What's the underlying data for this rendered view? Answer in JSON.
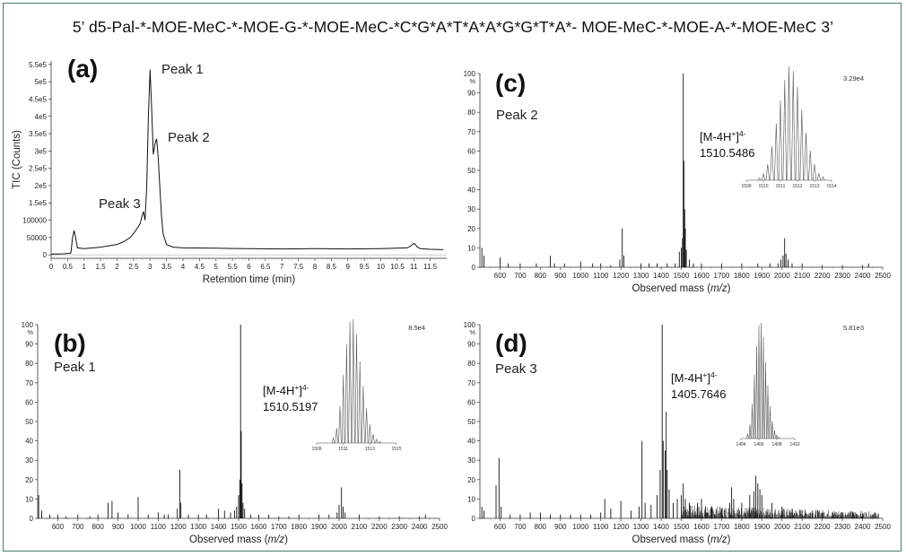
{
  "figure": {
    "title": "5’ d5-Pal-*-MOE-MeC-*-MOE-G-*-MOE-MeC-*C*G*A*T*A*A*G*G*T*A*- MOE-MeC-*-MOE-A-*-MOE-MeC 3’",
    "frame_color": "#4a7d6e"
  },
  "chart_data": [
    {
      "id": "a",
      "type": "line",
      "panel_label": "(a)",
      "xlabel": "Retention time (min)",
      "ylabel": "TIC (Counts)",
      "xlim": [
        0,
        12
      ],
      "ylim": [
        -10000,
        560000
      ],
      "xticks": [
        0,
        0.5,
        1,
        1.5,
        2,
        2.5,
        3,
        3.5,
        4,
        4.5,
        5,
        5.5,
        6,
        6.5,
        7,
        7.5,
        8,
        8.5,
        9,
        9.5,
        10,
        10.5,
        11,
        11.5
      ],
      "xtick_labels": [
        "0",
        "0.5",
        "1",
        "1.5",
        "2",
        "2.5",
        "3",
        "3.5",
        "4",
        "4.5",
        "5",
        "5.5",
        "6",
        "6.5",
        "7",
        "7.5",
        "8",
        "8.5",
        "9",
        "9.5",
        "10",
        "10.5",
        "11",
        "11.5"
      ],
      "yticks": [
        0,
        50000,
        100000,
        150000,
        200000,
        250000,
        300000,
        350000,
        400000,
        450000,
        500000,
        550000
      ],
      "ytick_labels": [
        "0",
        "50000",
        "100000",
        "1.5e5",
        "2e5",
        "2.5e5",
        "3e5",
        "3.5e5",
        "4e5",
        "4.5e5",
        "5e5",
        "5.5e5"
      ],
      "series": [
        {
          "x": [
            0.0,
            0.4,
            0.6,
            0.65,
            0.7,
            0.75,
            0.8,
            1.0,
            1.5,
            2.0,
            2.2,
            2.4,
            2.5,
            2.6,
            2.7,
            2.75,
            2.8,
            2.85,
            2.9,
            2.95,
            3.0,
            3.05,
            3.1,
            3.15,
            3.2,
            3.25,
            3.3,
            3.35,
            3.4,
            3.5,
            3.7,
            4.0,
            5.0,
            6.0,
            7.0,
            8.0,
            9.0,
            10.0,
            10.8,
            10.9,
            11.0,
            11.05,
            11.1,
            11.2,
            11.5,
            11.9
          ],
          "y": [
            2000,
            3000,
            5000,
            50000,
            70000,
            45000,
            20000,
            18000,
            22000,
            30000,
            38000,
            50000,
            62000,
            75000,
            90000,
            110000,
            125000,
            100000,
            200000,
            400000,
            535000,
            420000,
            290000,
            320000,
            335000,
            280000,
            190000,
            110000,
            60000,
            30000,
            22000,
            20000,
            19000,
            18000,
            17000,
            18000,
            17000,
            18000,
            20000,
            25000,
            33000,
            30000,
            23000,
            18000,
            16000,
            15000
          ]
        }
      ],
      "annotations": [
        {
          "text": "Peak 1",
          "x": 3.0,
          "y": 535000
        },
        {
          "text": "Peak 2",
          "x": 3.2,
          "y": 335000
        },
        {
          "text": "Peak 3",
          "x": 2.85,
          "y": 125000
        }
      ]
    },
    {
      "id": "c",
      "type": "bar",
      "panel_label": "(c)",
      "peak_label": "Peak 2",
      "ion_label": "[M-4H",
      "ion_sup1": "+",
      "ion_close": "]",
      "ion_sup2": "4-",
      "ion_mass": "1510.5486",
      "scale_label": "3.29e4",
      "pct_label": "%",
      "xlabel_main": "Observed mass (",
      "xlabel_italic": "m/z",
      "xlabel_end": ")",
      "xlim": [
        500,
        2500
      ],
      "ylim": [
        0,
        100
      ],
      "xticks": [
        600,
        700,
        800,
        900,
        1000,
        1100,
        1200,
        1300,
        1400,
        1500,
        1600,
        1700,
        1800,
        1900,
        2000,
        2100,
        2200,
        2300,
        2400,
        2500
      ],
      "yticks": [
        0,
        10,
        20,
        30,
        40,
        50,
        60,
        70,
        80,
        90,
        100
      ],
      "peaks": [
        [
          510,
          10
        ],
        [
          520,
          6
        ],
        [
          600,
          5
        ],
        [
          640,
          2
        ],
        [
          700,
          2
        ],
        [
          780,
          2
        ],
        [
          850,
          6
        ],
        [
          870,
          2
        ],
        [
          920,
          2
        ],
        [
          1000,
          3
        ],
        [
          1060,
          2
        ],
        [
          1100,
          2
        ],
        [
          1150,
          1
        ],
        [
          1195,
          4
        ],
        [
          1207,
          20
        ],
        [
          1215,
          6
        ],
        [
          1300,
          2
        ],
        [
          1340,
          2
        ],
        [
          1380,
          2
        ],
        [
          1430,
          2
        ],
        [
          1470,
          2
        ],
        [
          1490,
          8
        ],
        [
          1500,
          10
        ],
        [
          1506,
          15
        ],
        [
          1510,
          100
        ],
        [
          1513,
          55
        ],
        [
          1517,
          30
        ],
        [
          1520,
          20
        ],
        [
          1525,
          9
        ],
        [
          1540,
          4
        ],
        [
          1560,
          2
        ],
        [
          1600,
          2
        ],
        [
          1700,
          2
        ],
        [
          1800,
          2
        ],
        [
          1880,
          2
        ],
        [
          1940,
          2
        ],
        [
          1980,
          2
        ],
        [
          1995,
          4
        ],
        [
          2005,
          6
        ],
        [
          2013,
          15
        ],
        [
          2020,
          7
        ],
        [
          2030,
          4
        ],
        [
          2050,
          2
        ],
        [
          2100,
          2
        ],
        [
          2200,
          1
        ],
        [
          2300,
          1
        ],
        [
          2400,
          1
        ],
        [
          2430,
          2
        ]
      ],
      "inset": {
        "xlim": [
          1509,
          1514
        ],
        "ticks": [
          1509,
          1510,
          1511,
          1512,
          1513,
          1514
        ],
        "centers": [
          1509.75,
          1510.0,
          1510.25,
          1510.5,
          1510.75,
          1511.0,
          1511.25,
          1511.5,
          1511.75,
          1512.0,
          1512.25,
          1512.5,
          1512.75,
          1513.0,
          1513.25,
          1513.5
        ],
        "heights": [
          2,
          6,
          14,
          30,
          50,
          70,
          88,
          100,
          96,
          82,
          62,
          42,
          26,
          14,
          6,
          3
        ]
      }
    },
    {
      "id": "b",
      "type": "bar",
      "panel_label": "(b)",
      "peak_label": "Peak 1",
      "ion_label": "[M-4H",
      "ion_sup1": "+",
      "ion_close": "]",
      "ion_sup2": "4-",
      "ion_mass": "1510.5197",
      "scale_label": "8.5e4",
      "pct_label": "%",
      "xlabel_main": "Observed mass (",
      "xlabel_italic": "m/z",
      "xlabel_end": ")",
      "xlim": [
        500,
        2500
      ],
      "ylim": [
        0,
        100
      ],
      "xticks": [
        600,
        700,
        800,
        900,
        1000,
        1100,
        1200,
        1300,
        1400,
        1500,
        1600,
        1700,
        1800,
        1900,
        2000,
        2100,
        2200,
        2300,
        2400,
        2500
      ],
      "yticks": [
        0,
        10,
        20,
        30,
        40,
        50,
        60,
        70,
        80,
        90,
        100
      ],
      "peaks": [
        [
          505,
          12
        ],
        [
          520,
          4
        ],
        [
          560,
          2
        ],
        [
          600,
          2
        ],
        [
          640,
          1
        ],
        [
          700,
          2
        ],
        [
          760,
          1
        ],
        [
          800,
          2
        ],
        [
          850,
          8
        ],
        [
          870,
          9
        ],
        [
          900,
          3
        ],
        [
          950,
          2
        ],
        [
          1000,
          11
        ],
        [
          1050,
          2
        ],
        [
          1100,
          3
        ],
        [
          1130,
          2
        ],
        [
          1150,
          2
        ],
        [
          1195,
          5
        ],
        [
          1207,
          25
        ],
        [
          1213,
          8
        ],
        [
          1250,
          2
        ],
        [
          1300,
          2
        ],
        [
          1340,
          2
        ],
        [
          1400,
          5
        ],
        [
          1430,
          4
        ],
        [
          1460,
          3
        ],
        [
          1480,
          4
        ],
        [
          1490,
          6
        ],
        [
          1500,
          12
        ],
        [
          1506,
          20
        ],
        [
          1510,
          100
        ],
        [
          1513,
          45
        ],
        [
          1517,
          18
        ],
        [
          1522,
          8
        ],
        [
          1530,
          5
        ],
        [
          1560,
          2
        ],
        [
          1600,
          2
        ],
        [
          1650,
          2
        ],
        [
          1700,
          1
        ],
        [
          1750,
          1
        ],
        [
          1800,
          2
        ],
        [
          1900,
          2
        ],
        [
          1950,
          2
        ],
        [
          1990,
          3
        ],
        [
          2000,
          7
        ],
        [
          2012,
          16
        ],
        [
          2020,
          6
        ],
        [
          2030,
          3
        ],
        [
          2100,
          2
        ],
        [
          2200,
          1
        ],
        [
          2300,
          1
        ],
        [
          2400,
          1
        ],
        [
          2430,
          2
        ]
      ],
      "inset": {
        "xlim": [
          1509,
          1515
        ],
        "ticks": [
          1509,
          1511,
          1513,
          1515
        ],
        "centers": [
          1510.25,
          1510.5,
          1510.75,
          1511.0,
          1511.25,
          1511.5,
          1511.75,
          1512.0,
          1512.25,
          1512.5,
          1512.75,
          1513.0,
          1513.25,
          1513.5,
          1513.75
        ],
        "heights": [
          4,
          12,
          30,
          55,
          80,
          98,
          100,
          88,
          66,
          46,
          28,
          15,
          7,
          3,
          1
        ]
      }
    },
    {
      "id": "d",
      "type": "bar",
      "panel_label": "(d)",
      "peak_label": "Peak 3",
      "ion_label": "[M-4H",
      "ion_sup1": "+",
      "ion_close": "]",
      "ion_sup2": "4-",
      "ion_mass": "1405.7646",
      "scale_label": "5.81e3",
      "pct_label": "%",
      "xlabel_main": "Observed mass (",
      "xlabel_italic": "m/z",
      "xlabel_end": ")",
      "xlim": [
        500,
        2500
      ],
      "ylim": [
        0,
        100
      ],
      "xticks": [
        600,
        700,
        800,
        900,
        1000,
        1100,
        1200,
        1300,
        1400,
        1500,
        1600,
        1700,
        1800,
        1900,
        2000,
        2100,
        2200,
        2300,
        2400,
        2500
      ],
      "yticks": [
        0,
        10,
        20,
        30,
        40,
        50,
        60,
        70,
        80,
        90,
        100
      ],
      "peaks": [
        [
          510,
          6
        ],
        [
          520,
          4
        ],
        [
          580,
          17
        ],
        [
          595,
          31
        ],
        [
          605,
          6
        ],
        [
          650,
          2
        ],
        [
          700,
          2
        ],
        [
          750,
          3
        ],
        [
          800,
          3
        ],
        [
          850,
          2
        ],
        [
          900,
          2
        ],
        [
          950,
          2
        ],
        [
          1000,
          2
        ],
        [
          1050,
          2
        ],
        [
          1100,
          3
        ],
        [
          1120,
          10
        ],
        [
          1150,
          5
        ],
        [
          1200,
          9
        ],
        [
          1250,
          4
        ],
        [
          1290,
          6
        ],
        [
          1305,
          40
        ],
        [
          1320,
          8
        ],
        [
          1350,
          7
        ],
        [
          1380,
          12
        ],
        [
          1395,
          25
        ],
        [
          1405,
          100
        ],
        [
          1410,
          40
        ],
        [
          1420,
          35
        ],
        [
          1425,
          55
        ],
        [
          1430,
          25
        ],
        [
          1440,
          15
        ],
        [
          1460,
          8
        ],
        [
          1480,
          10
        ],
        [
          1500,
          12
        ],
        [
          1510,
          18
        ],
        [
          1520,
          10
        ],
        [
          1540,
          8
        ],
        [
          1580,
          8
        ],
        [
          1600,
          10
        ],
        [
          1620,
          6
        ],
        [
          1650,
          6
        ],
        [
          1700,
          5
        ],
        [
          1740,
          8
        ],
        [
          1750,
          16
        ],
        [
          1760,
          10
        ],
        [
          1800,
          8
        ],
        [
          1840,
          12
        ],
        [
          1860,
          14
        ],
        [
          1870,
          22
        ],
        [
          1880,
          18
        ],
        [
          1890,
          15
        ],
        [
          1900,
          12
        ],
        [
          1950,
          8
        ],
        [
          2000,
          6
        ],
        [
          2050,
          5
        ],
        [
          2100,
          4
        ],
        [
          2150,
          4
        ],
        [
          2200,
          3
        ],
        [
          2250,
          3
        ],
        [
          2300,
          3
        ],
        [
          2350,
          3
        ],
        [
          2400,
          2
        ],
        [
          2450,
          2
        ]
      ],
      "noise": {
        "from": 1500,
        "to": 2480,
        "amplitude": 7
      },
      "inset": {
        "xlim": [
          1404,
          1410
        ],
        "ticks": [
          1404,
          1406,
          1408,
          1410
        ],
        "centers": [
          1404.75,
          1405.0,
          1405.25,
          1405.5,
          1405.75,
          1406.0,
          1406.25,
          1406.5,
          1406.75,
          1407.0,
          1407.25,
          1407.5,
          1407.75,
          1408.0,
          1408.25
        ],
        "heights": [
          4,
          12,
          30,
          55,
          80,
          98,
          100,
          88,
          66,
          46,
          28,
          15,
          7,
          3,
          1
        ]
      }
    }
  ]
}
